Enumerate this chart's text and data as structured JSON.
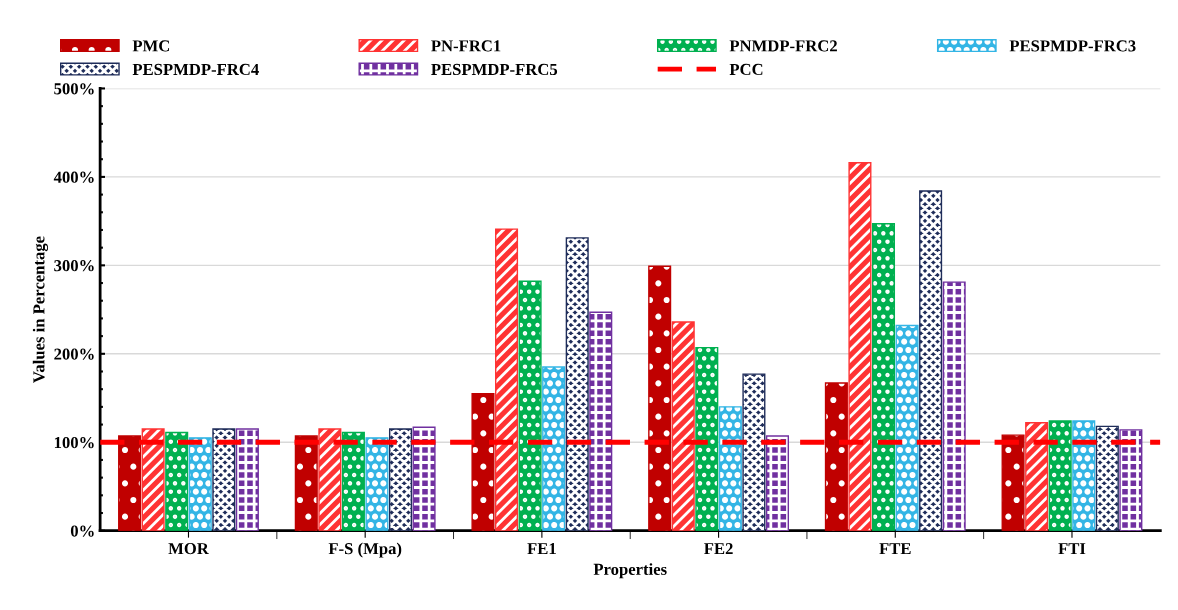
{
  "chart_data": {
    "type": "bar",
    "xlabel": "Properties",
    "ylabel": "Values in Percentage",
    "categories": [
      "MOR",
      "F-S (Mpa)",
      "FE1",
      "FE2",
      "FTE",
      "FTI"
    ],
    "series": [
      {
        "name": "PMC",
        "color": "#c00000",
        "values": [
          107,
          107,
          155,
          299,
          167,
          108
        ]
      },
      {
        "name": "PN-FRC1",
        "color": "#ff3333",
        "values": [
          115,
          115,
          341,
          236,
          416,
          122
        ]
      },
      {
        "name": "PNMDP-FRC2",
        "color": "#00b050",
        "values": [
          111,
          111,
          282,
          207,
          347,
          124
        ]
      },
      {
        "name": "PESPMDP-FRC3",
        "color": "#33b5e5",
        "values": [
          105,
          105,
          185,
          140,
          232,
          124
        ]
      },
      {
        "name": "PESPMDP-FRC4",
        "color": "#1f2d5a",
        "values": [
          115,
          115,
          331,
          177,
          384,
          118
        ]
      },
      {
        "name": "PESPMDP-FRC5",
        "color": "#7030a0",
        "values": [
          115,
          117,
          247,
          107,
          281,
          114
        ]
      }
    ],
    "ylim": [
      0,
      500
    ],
    "yticks": [
      {
        "value": 0,
        "label": "0%"
      },
      {
        "value": 100,
        "label": "100%"
      },
      {
        "value": 200,
        "label": "200%"
      },
      {
        "value": 300,
        "label": "300%"
      },
      {
        "value": 400,
        "label": "400%"
      },
      {
        "value": 500,
        "label": "500%"
      }
    ],
    "ref_lines": [
      {
        "axis": "y",
        "value": 100,
        "label": "PCC",
        "color": "#ff0000",
        "line_style": "dashed"
      }
    ],
    "grid": "y",
    "legend": "top"
  }
}
